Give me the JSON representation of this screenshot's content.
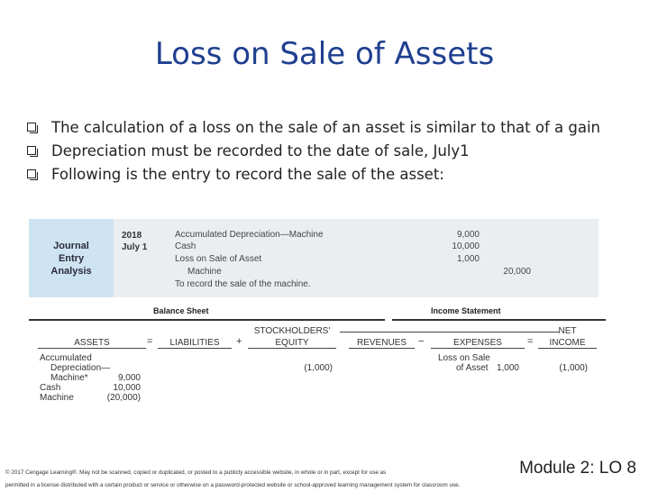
{
  "title": "Loss on Sale of Assets",
  "bullets": [
    "The calculation of a loss on the sale of an asset is similar to that of a gain",
    "Depreciation must be recorded to the date of sale, July1",
    "Following is the entry to record the sale of the asset:"
  ],
  "journal": {
    "label": "Journal\nEntry\nAnalysis",
    "year": "2018",
    "date": "July 1",
    "rows": [
      {
        "account": "Accumulated Depreciation—Machine",
        "debit": "9,000",
        "credit": ""
      },
      {
        "account": "Cash",
        "debit": "10,000",
        "credit": ""
      },
      {
        "account": "Loss on Sale of Asset",
        "debit": "1,000",
        "credit": ""
      },
      {
        "account": "Machine",
        "debit": "",
        "credit": "20,000"
      },
      {
        "account": "To record the sale of the machine.",
        "debit": "",
        "credit": ""
      }
    ]
  },
  "analysis": {
    "balance_sheet": "Balance Sheet",
    "income_statement": "Income Statement",
    "assets": "ASSETS",
    "equals1": "=",
    "liabilities": "LIABILITIES",
    "plus": "+",
    "se_line1": "STOCKHOLDERS'",
    "se_line2": "EQUITY",
    "revenues": "REVENUES",
    "minus": "−",
    "expenses": "EXPENSES",
    "equals2": "=",
    "ni_line1": "NET",
    "ni_line2": "INCOME",
    "asset_items": [
      {
        "label": "Accumulated",
        "value": ""
      },
      {
        "label": "Depreciation—",
        "value": ""
      },
      {
        "label": "Machine*",
        "value": "9,000"
      },
      {
        "label": "Cash",
        "value": "10,000"
      },
      {
        "label": "Machine",
        "value": "(20,000)"
      }
    ],
    "equity_value": "(1,000)",
    "expense_label_1": "Loss on Sale",
    "expense_label_2": "of Asset",
    "expense_value": "1,000",
    "net_income_value": "(1,000)"
  },
  "footer": {
    "line1": "© 2017 Cengage Learning®. May not be scanned, copied or duplicated, or posted to a publicly accessible website, in whole or in part, except for use as",
    "line2": "permitted in a license distributed with a certain product or service or otherwise on a password-protected website or school-approved learning management system for classroom use."
  },
  "module": "Module 2: LO 8"
}
